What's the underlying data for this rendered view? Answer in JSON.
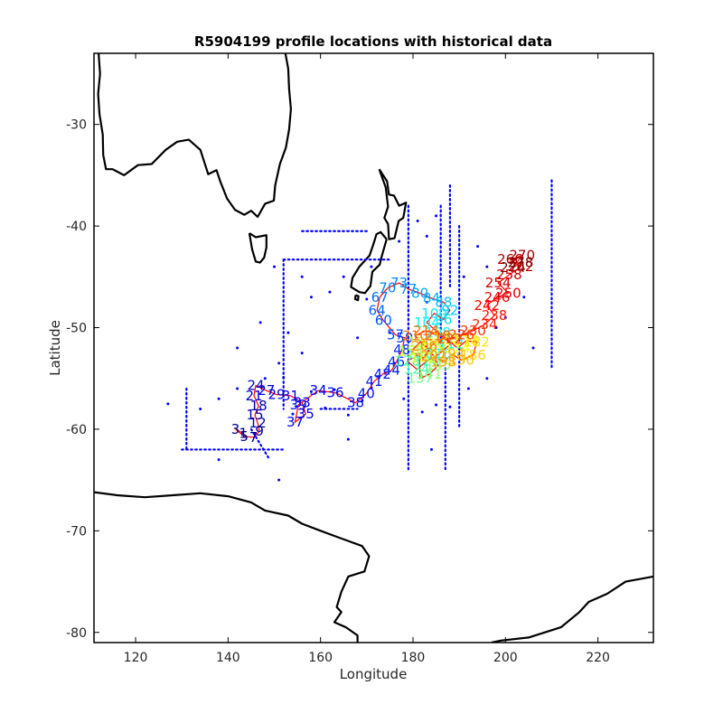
{
  "chart_data": {
    "type": "scatter",
    "title": "R5904199 profile locations with historical data",
    "xlabel": "Longitude",
    "ylabel": "Latitude",
    "xlim": [
      111,
      232
    ],
    "ylim": [
      -81,
      -23
    ],
    "xticks": [
      120,
      140,
      160,
      180,
      200,
      220
    ],
    "yticks": [
      -80,
      -70,
      -60,
      -50,
      -40,
      -30
    ],
    "grid": false,
    "colors": {
      "coastline": "#000000",
      "historical": "#0000ff",
      "track": "#ff0000",
      "axes": "#000000"
    },
    "colormap": "jet",
    "coastline": [
      [
        [
          112,
          -23
        ],
        [
          112.3,
          -25
        ],
        [
          111.9,
          -27
        ],
        [
          112.2,
          -29
        ],
        [
          112.9,
          -31
        ],
        [
          113.0,
          -33
        ],
        [
          113.6,
          -34.4
        ],
        [
          115.0,
          -34.4
        ],
        [
          117.5,
          -35.0
        ],
        [
          120.5,
          -34.0
        ],
        [
          123.5,
          -33.9
        ],
        [
          126.5,
          -32.5
        ],
        [
          129.0,
          -31.7
        ],
        [
          131.5,
          -31.5
        ],
        [
          134.0,
          -32.5
        ],
        [
          135.7,
          -34.9
        ],
        [
          137.5,
          -34.5
        ],
        [
          138.3,
          -35.6
        ],
        [
          139.8,
          -37.3
        ],
        [
          141.5,
          -38.4
        ],
        [
          143.5,
          -38.9
        ],
        [
          145.0,
          -38.5
        ],
        [
          146.4,
          -39.1
        ],
        [
          148.0,
          -37.8
        ],
        [
          149.9,
          -37.5
        ],
        [
          150.2,
          -36.0
        ],
        [
          151.2,
          -33.9
        ],
        [
          152.5,
          -32.3
        ],
        [
          153.2,
          -30.5
        ],
        [
          153.6,
          -28.5
        ],
        [
          153.2,
          -26.5
        ],
        [
          153.0,
          -24.5
        ],
        [
          152.4,
          -23.0
        ]
      ],
      [
        [
          144.6,
          -40.7
        ],
        [
          146.0,
          -41.1
        ],
        [
          148.3,
          -40.9
        ],
        [
          148.3,
          -42.1
        ],
        [
          147.8,
          -43.1
        ],
        [
          146.9,
          -43.6
        ],
        [
          146.0,
          -43.5
        ],
        [
          145.2,
          -42.3
        ],
        [
          144.6,
          -40.7
        ]
      ],
      [
        [
          172.7,
          -34.4
        ],
        [
          174.4,
          -35.6
        ],
        [
          174.8,
          -36.9
        ],
        [
          175.9,
          -37.0
        ],
        [
          177.0,
          -38.0
        ],
        [
          178.5,
          -37.7
        ],
        [
          177.9,
          -39.2
        ],
        [
          176.9,
          -39.5
        ],
        [
          176.0,
          -41.2
        ],
        [
          174.8,
          -41.3
        ],
        [
          174.6,
          -39.8
        ],
        [
          173.8,
          -39.2
        ],
        [
          174.6,
          -38.1
        ],
        [
          174.1,
          -36.2
        ],
        [
          172.7,
          -34.4
        ]
      ],
      [
        [
          174.3,
          -41.3
        ],
        [
          173.1,
          -43.2
        ],
        [
          172.8,
          -43.8
        ],
        [
          171.2,
          -44.5
        ],
        [
          170.8,
          -45.9
        ],
        [
          169.6,
          -46.6
        ],
        [
          168.4,
          -46.5
        ],
        [
          166.6,
          -46.0
        ],
        [
          166.9,
          -45.1
        ],
        [
          168.4,
          -44.0
        ],
        [
          170.6,
          -42.9
        ],
        [
          171.5,
          -41.7
        ],
        [
          172.1,
          -40.8
        ],
        [
          173.0,
          -40.6
        ],
        [
          174.3,
          -41.3
        ]
      ],
      [
        [
          167.6,
          -46.8
        ],
        [
          168.2,
          -46.9
        ],
        [
          168.1,
          -47.3
        ],
        [
          167.5,
          -47.2
        ],
        [
          167.6,
          -46.8
        ]
      ],
      [
        [
          111,
          -66.2
        ],
        [
          116,
          -66.5
        ],
        [
          122,
          -66.7
        ],
        [
          128,
          -66.5
        ],
        [
          134,
          -66.3
        ],
        [
          140,
          -66.6
        ],
        [
          145,
          -67.2
        ],
        [
          148,
          -68.0
        ],
        [
          153,
          -68.5
        ],
        [
          156,
          -69.3
        ],
        [
          160,
          -70.0
        ],
        [
          163,
          -70.5
        ],
        [
          166,
          -71.0
        ],
        [
          169,
          -71.5
        ],
        [
          170.5,
          -72.5
        ],
        [
          169.5,
          -74.0
        ],
        [
          166,
          -74.5
        ],
        [
          164.5,
          -76.0
        ],
        [
          163.5,
          -77.5
        ],
        [
          164.5,
          -78.0
        ],
        [
          163,
          -79.0
        ],
        [
          165.5,
          -79.5
        ],
        [
          168,
          -80.3
        ],
        [
          168,
          -81
        ]
      ],
      [
        [
          197,
          -81
        ],
        [
          199,
          -80.8
        ],
        [
          205,
          -80.5
        ],
        [
          212,
          -79.5
        ],
        [
          216,
          -78.0
        ],
        [
          218,
          -77.0
        ],
        [
          222,
          -76.2
        ],
        [
          226,
          -75.0
        ],
        [
          232,
          -74.5
        ]
      ]
    ],
    "historical_lines": [
      [
        [
          152,
          -43.3
        ],
        [
          175,
          -43.3
        ]
      ],
      [
        [
          152,
          -43.3
        ],
        [
          152,
          -58
        ]
      ],
      [
        [
          210,
          -35.5
        ],
        [
          210,
          -54
        ]
      ],
      [
        [
          186,
          -38
        ],
        [
          186,
          -52
        ]
      ],
      [
        [
          188,
          -36
        ],
        [
          188,
          -46
        ]
      ],
      [
        [
          179,
          -38
        ],
        [
          179,
          -64
        ]
      ],
      [
        [
          187,
          -54
        ],
        [
          187,
          -64
        ]
      ],
      [
        [
          190,
          -40
        ],
        [
          190,
          -60
        ]
      ],
      [
        [
          131,
          -56
        ],
        [
          131,
          -62
        ]
      ],
      [
        [
          145,
          -60
        ],
        [
          149,
          -63
        ]
      ],
      [
        [
          130,
          -62
        ],
        [
          152,
          -62
        ]
      ],
      [
        [
          156,
          -40.5
        ],
        [
          170,
          -40.5
        ]
      ],
      [
        [
          160,
          -58
        ],
        [
          168,
          -58
        ]
      ]
    ],
    "historical_points": [
      [
        152,
        -54.9
      ],
      [
        154,
        -58.5
      ],
      [
        158,
        -56.3
      ],
      [
        161,
        -57.9
      ],
      [
        163,
        -56.1
      ],
      [
        166,
        -58.6
      ],
      [
        169,
        -57.2
      ],
      [
        171,
        -55.9
      ],
      [
        174,
        -54.5
      ],
      [
        165,
        -45.0
      ],
      [
        162,
        -46.5
      ],
      [
        170,
        -47.2
      ],
      [
        178,
        -57.0
      ],
      [
        182,
        -58.3
      ],
      [
        185,
        -57.6
      ],
      [
        188,
        -57.8
      ],
      [
        192,
        -56.0
      ],
      [
        196,
        -55.0
      ],
      [
        200,
        -49.0
      ],
      [
        127,
        -57.5
      ],
      [
        134,
        -58.0
      ],
      [
        138,
        -57.0
      ],
      [
        142,
        -56.0
      ],
      [
        148,
        -55.0
      ],
      [
        151,
        -53.5
      ],
      [
        147,
        -49.5
      ],
      [
        153,
        -50.5
      ],
      [
        156,
        -52.5
      ],
      [
        158,
        -47.0
      ],
      [
        150,
        -44.0
      ],
      [
        168,
        -51.0
      ],
      [
        175,
        -50.5
      ],
      [
        181,
        -39.5
      ],
      [
        183,
        -41.0
      ],
      [
        185,
        -39.0
      ],
      [
        194,
        -42.0
      ],
      [
        196,
        -44.0
      ],
      [
        198,
        -50.0
      ],
      [
        206,
        -52.0
      ],
      [
        204,
        -47.0
      ],
      [
        184,
        -62.0
      ],
      [
        176,
        -53.5
      ],
      [
        166,
        -61.0
      ],
      [
        138,
        -63.0
      ],
      [
        151,
        -65.0
      ],
      [
        142,
        -52.0
      ],
      [
        156,
        -45.0
      ],
      [
        171,
        -44.0
      ],
      [
        177,
        -41.5
      ],
      [
        183,
        -47.5
      ],
      [
        191,
        -45.0
      ]
    ],
    "profiles": [
      {
        "n": 1,
        "lon": 143.3,
        "lat": -60.4
      },
      {
        "n": 3,
        "lon": 141.6,
        "lat": -60.0
      },
      {
        "n": 5,
        "lon": 143.5,
        "lat": -60.7
      },
      {
        "n": 7,
        "lon": 145.5,
        "lat": -60.8
      },
      {
        "n": 9,
        "lon": 146.8,
        "lat": -60.2
      },
      {
        "n": 12,
        "lon": 146.4,
        "lat": -59.4
      },
      {
        "n": 15,
        "lon": 145.8,
        "lat": -58.6
      },
      {
        "n": 18,
        "lon": 146.6,
        "lat": -57.7
      },
      {
        "n": 21,
        "lon": 145.6,
        "lat": -56.7
      },
      {
        "n": 24,
        "lon": 146.0,
        "lat": -55.7
      },
      {
        "n": 27,
        "lon": 148.3,
        "lat": -56.2
      },
      {
        "n": 29,
        "lon": 150.5,
        "lat": -56.6
      },
      {
        "n": 31,
        "lon": 153.5,
        "lat": -56.7
      },
      {
        "n": 33,
        "lon": 156.0,
        "lat": -57.4
      },
      {
        "n": 35,
        "lon": 156.8,
        "lat": -58.5
      },
      {
        "n": 37,
        "lon": 154.5,
        "lat": -59.3
      },
      {
        "n": 39,
        "lon": 155.2,
        "lat": -57.6
      },
      {
        "n": 34,
        "lon": 159.5,
        "lat": -56.2
      },
      {
        "n": 36,
        "lon": 163.2,
        "lat": -56.4
      },
      {
        "n": 38,
        "lon": 167.6,
        "lat": -57.4
      },
      {
        "n": 40,
        "lon": 169.9,
        "lat": -56.5
      },
      {
        "n": 41,
        "lon": 171.6,
        "lat": -55.3
      },
      {
        "n": 42,
        "lon": 173.4,
        "lat": -54.6
      },
      {
        "n": 44,
        "lon": 175.4,
        "lat": -54.2
      },
      {
        "n": 46,
        "lon": 176.4,
        "lat": -53.4
      },
      {
        "n": 48,
        "lon": 177.6,
        "lat": -52.2
      },
      {
        "n": 50,
        "lon": 178.2,
        "lat": -51.0
      },
      {
        "n": 57,
        "lon": 176.2,
        "lat": -50.7
      },
      {
        "n": 60,
        "lon": 173.6,
        "lat": -49.3
      },
      {
        "n": 64,
        "lon": 172.2,
        "lat": -48.3
      },
      {
        "n": 67,
        "lon": 172.8,
        "lat": -47.0
      },
      {
        "n": 70,
        "lon": 174.5,
        "lat": -46.1
      },
      {
        "n": 73,
        "lon": 177.0,
        "lat": -45.6
      },
      {
        "n": 77,
        "lon": 179.0,
        "lat": -46.2
      },
      {
        "n": 80,
        "lon": 181.5,
        "lat": -46.6
      },
      {
        "n": 84,
        "lon": 184.0,
        "lat": -47.1
      },
      {
        "n": 88,
        "lon": 186.6,
        "lat": -47.5
      },
      {
        "n": 92,
        "lon": 188.0,
        "lat": -48.3
      },
      {
        "n": 96,
        "lon": 186.6,
        "lat": -49.2
      },
      {
        "n": 100,
        "lon": 184.6,
        "lat": -48.6
      },
      {
        "n": 104,
        "lon": 183.0,
        "lat": -49.5
      },
      {
        "n": 108,
        "lon": 185.4,
        "lat": -50.5
      },
      {
        "n": 112,
        "lon": 188.2,
        "lat": -51.6
      },
      {
        "n": 116,
        "lon": 185.6,
        "lat": -52.6
      },
      {
        "n": 120,
        "lon": 183.0,
        "lat": -53.3
      },
      {
        "n": 124,
        "lon": 180.8,
        "lat": -54.1
      },
      {
        "n": 128,
        "lon": 178.8,
        "lat": -53.3
      },
      {
        "n": 132,
        "lon": 181.4,
        "lat": -52.6
      },
      {
        "n": 137,
        "lon": 181.5,
        "lat": -55.0
      },
      {
        "n": 141,
        "lon": 183.5,
        "lat": -54.6
      },
      {
        "n": 145,
        "lon": 185.5,
        "lat": -53.7
      },
      {
        "n": 150,
        "lon": 183.6,
        "lat": -52.1
      },
      {
        "n": 154,
        "lon": 181.6,
        "lat": -51.4
      },
      {
        "n": 158,
        "lon": 179.6,
        "lat": -52.3
      },
      {
        "n": 162,
        "lon": 182.2,
        "lat": -53.0
      },
      {
        "n": 166,
        "lon": 184.3,
        "lat": -51.6
      },
      {
        "n": 170,
        "lon": 187.0,
        "lat": -51.0
      },
      {
        "n": 174,
        "lon": 189.6,
        "lat": -52.0
      },
      {
        "n": 178,
        "lon": 191.5,
        "lat": -51.3
      },
      {
        "n": 182,
        "lon": 193.8,
        "lat": -51.4
      },
      {
        "n": 186,
        "lon": 193.0,
        "lat": -52.7
      },
      {
        "n": 190,
        "lon": 190.5,
        "lat": -53.2
      },
      {
        "n": 194,
        "lon": 188.4,
        "lat": -52.6
      },
      {
        "n": 198,
        "lon": 186.6,
        "lat": -53.4
      },
      {
        "n": 202,
        "lon": 184.5,
        "lat": -52.8
      },
      {
        "n": 206,
        "lon": 182.5,
        "lat": -51.8
      },
      {
        "n": 210,
        "lon": 180.5,
        "lat": -50.8
      },
      {
        "n": 214,
        "lon": 182.8,
        "lat": -50.3
      },
      {
        "n": 218,
        "lon": 185.4,
        "lat": -50.8
      },
      {
        "n": 222,
        "lon": 188.0,
        "lat": -51.1
      },
      {
        "n": 226,
        "lon": 190.5,
        "lat": -50.7
      },
      {
        "n": 230,
        "lon": 193.0,
        "lat": -50.3
      },
      {
        "n": 234,
        "lon": 195.5,
        "lat": -49.7
      },
      {
        "n": 238,
        "lon": 197.6,
        "lat": -48.8
      },
      {
        "n": 242,
        "lon": 196.0,
        "lat": -47.8
      },
      {
        "n": 246,
        "lon": 198.2,
        "lat": -47.0
      },
      {
        "n": 250,
        "lon": 200.6,
        "lat": -46.6
      },
      {
        "n": 254,
        "lon": 198.4,
        "lat": -45.6
      },
      {
        "n": 258,
        "lon": 200.8,
        "lat": -44.8
      },
      {
        "n": 262,
        "lon": 203.3,
        "lat": -44.0
      },
      {
        "n": 266,
        "lon": 201.0,
        "lat": -43.3
      },
      {
        "n": 270,
        "lon": 203.6,
        "lat": -42.9
      },
      {
        "n": 274,
        "lon": 201.6,
        "lat": -44.1
      },
      {
        "n": 278,
        "lon": 203.3,
        "lat": -43.6
      }
    ]
  }
}
